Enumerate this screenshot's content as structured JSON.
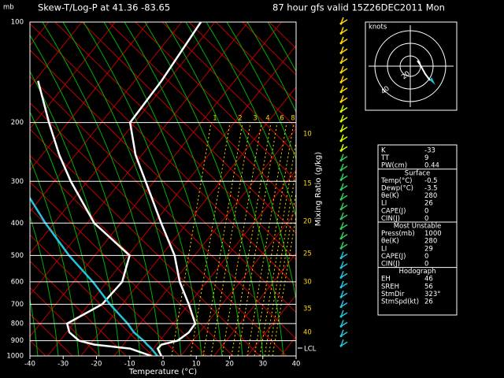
{
  "chart_data": {
    "type": "skewt",
    "title": "Skew-T/Log-P at 41.36   -83.65",
    "subtitle": "87 hour gfs valid  15Z26DEC2011  Mon",
    "ylabel": "mb",
    "xlabel": "Temperature (°C)",
    "y": [
      1000,
      950,
      925,
      900,
      850,
      800,
      700,
      600,
      500,
      400,
      300,
      250,
      200,
      150,
      100
    ],
    "yscale": "log",
    "ylim": [
      1000,
      100
    ],
    "yticks": [
      100,
      200,
      300,
      400,
      500,
      600,
      700,
      800,
      900,
      1000
    ],
    "xlim": [
      -40,
      40
    ],
    "xticks": [
      -40,
      -30,
      -20,
      -10,
      0,
      10,
      20,
      30,
      40
    ],
    "grid": true,
    "series": [
      {
        "color": "#ffffff",
        "values": [
          -0.5,
          -3.4,
          -3.2,
          0.7,
          2.1,
          1.9,
          -4.7,
          -12.8,
          -20.7,
          -32.5,
          -47.2,
          -56.6,
          -66.0,
          -66.6,
          -68.9
        ]
      },
      {
        "color": "#ffffff",
        "values": [
          -3.5,
          -11.7,
          -23.3,
          -28.9,
          -33.8,
          -36.6,
          -30.7,
          -30.1,
          -34.2,
          -52.6,
          -69.7,
          -79.5,
          -90.4,
          -103.7,
          null
        ]
      },
      {
        "color": "#22c4dc",
        "values": [
          -1.7,
          -5.3,
          -7.5,
          -9.5,
          -14.4,
          -18.4,
          -28.4,
          -38.9,
          -52.4,
          -67.3,
          -85.1,
          null,
          null,
          null,
          null
        ]
      }
    ],
    "lcl_label": "LCL",
    "mixing_ratio": {
      "label": "Mixing Ratio (g/kg)",
      "values": [
        1,
        2,
        3,
        4,
        6,
        8,
        10,
        15,
        20,
        25,
        30,
        35,
        40
      ]
    }
  },
  "hodograph": {
    "unit": "knots",
    "ring_labels": [
      "20",
      "40"
    ]
  },
  "stats": {
    "rows": [
      [
        "K",
        "-33"
      ],
      [
        "TT",
        "9"
      ],
      [
        "PW(cm)",
        "0.44"
      ]
    ],
    "sections": [
      {
        "title": "Surface",
        "rows": [
          [
            "Temp(°C)",
            "-0.5"
          ],
          [
            "Dewp(°C)",
            "-3.5"
          ],
          [
            "θe(K)",
            "280"
          ],
          [
            "LI",
            "26"
          ],
          [
            "CAPE(J)",
            "0"
          ],
          [
            "CIN(J)",
            "0"
          ]
        ]
      },
      {
        "title": "Most Unstable",
        "rows": [
          [
            "Press(mb)",
            "1000"
          ],
          [
            "θe(K)",
            "280"
          ],
          [
            "LI",
            "29"
          ],
          [
            "CAPE(J)",
            "0"
          ],
          [
            "CIN(J)",
            "0"
          ]
        ]
      },
      {
        "title": "Hodograph",
        "rows": [
          [
            "EH",
            "46"
          ],
          [
            "SREH",
            "56"
          ],
          [
            "StmDir",
            "323°"
          ],
          [
            "StmSpd(kt)",
            "26"
          ]
        ]
      }
    ]
  }
}
